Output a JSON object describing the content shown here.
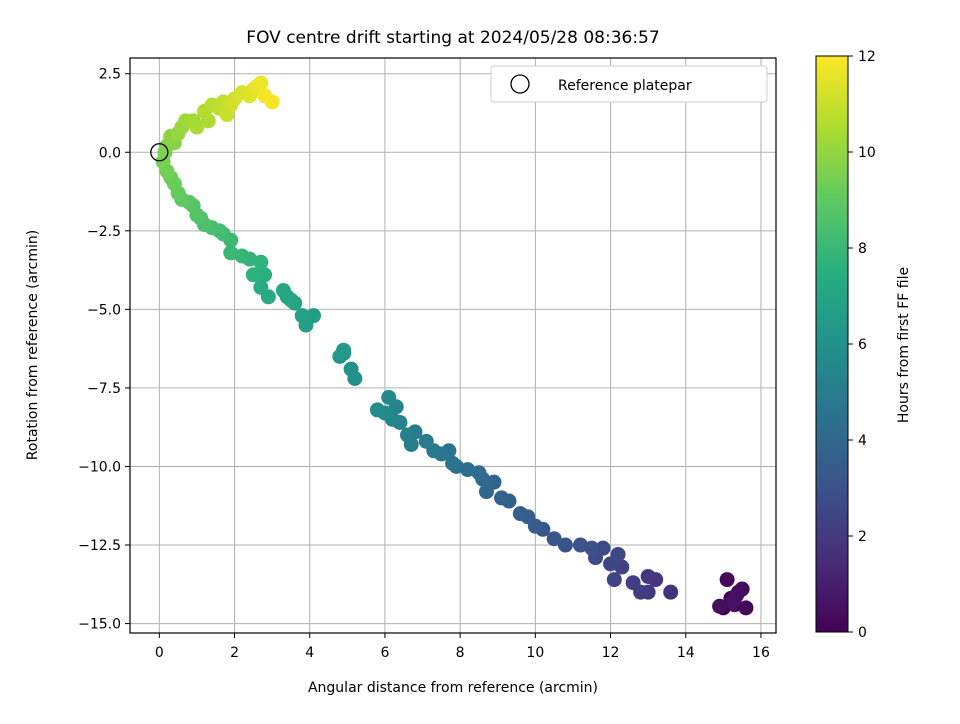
{
  "chart_data": {
    "type": "scatter",
    "title": "FOV centre drift starting at 2024/05/28 08:36:57",
    "xlabel": "Angular distance from reference (arcmin)",
    "ylabel": "Rotation from reference (arcmin)",
    "xlim": [
      -0.78,
      16.4
    ],
    "ylim": [
      -15.3,
      3.0
    ],
    "x_ticks": [
      0,
      2,
      4,
      6,
      8,
      10,
      12,
      14,
      16
    ],
    "y_ticks": [
      2.5,
      0.0,
      -2.5,
      -5.0,
      -7.5,
      -10.0,
      -12.5,
      -15.0
    ],
    "grid": true,
    "legend": {
      "position": "top-right",
      "entries": [
        "Reference platepar"
      ]
    },
    "colorbar": {
      "label": "Hours from first FF file",
      "min": 0,
      "max": 12,
      "ticks": [
        0,
        2,
        4,
        6,
        8,
        10,
        12
      ],
      "colormap": "viridis"
    },
    "reference_point": {
      "x": 0,
      "y": 0
    },
    "colors": {
      "reference_marker": "#000000",
      "grid": "#b0b0b0"
    },
    "points": [
      [
        15.0,
        -14.5,
        0.02
      ],
      [
        15.2,
        -14.2,
        0.08
      ],
      [
        15.4,
        -14.0,
        0.14
      ],
      [
        15.6,
        -14.5,
        0.2
      ],
      [
        15.1,
        -13.6,
        0.26
      ],
      [
        15.3,
        -14.4,
        0.32
      ],
      [
        15.5,
        -13.9,
        0.38
      ],
      [
        14.9,
        -14.45,
        0.44
      ],
      [
        15.35,
        -14.1,
        0.5
      ],
      [
        15.25,
        -14.3,
        0.56
      ],
      [
        13.6,
        -14.0,
        1.7
      ],
      [
        13.2,
        -13.6,
        1.8
      ],
      [
        13.0,
        -13.5,
        1.9
      ],
      [
        13.0,
        -14.0,
        2.0
      ],
      [
        12.8,
        -14.0,
        2.1
      ],
      [
        12.6,
        -13.7,
        2.2
      ],
      [
        12.3,
        -13.2,
        2.3
      ],
      [
        12.1,
        -13.6,
        2.4
      ],
      [
        12.0,
        -13.1,
        2.5
      ],
      [
        12.2,
        -12.8,
        2.6
      ],
      [
        11.8,
        -12.6,
        2.7
      ],
      [
        11.6,
        -12.9,
        2.8
      ],
      [
        11.5,
        -12.6,
        2.9
      ],
      [
        11.2,
        -12.5,
        3.0
      ],
      [
        10.8,
        -12.5,
        3.1
      ],
      [
        10.5,
        -12.3,
        3.2
      ],
      [
        10.2,
        -12.0,
        3.3
      ],
      [
        10.0,
        -11.9,
        3.4
      ],
      [
        9.8,
        -11.6,
        3.5
      ],
      [
        9.6,
        -11.5,
        3.6
      ],
      [
        9.3,
        -11.1,
        3.7
      ],
      [
        9.1,
        -11.0,
        3.8
      ],
      [
        8.9,
        -10.5,
        3.9
      ],
      [
        8.7,
        -10.8,
        4.0
      ],
      [
        8.6,
        -10.4,
        4.1
      ],
      [
        8.5,
        -10.2,
        4.2
      ],
      [
        8.2,
        -10.1,
        4.3
      ],
      [
        7.9,
        -10.0,
        4.4
      ],
      [
        7.7,
        -9.5,
        4.5
      ],
      [
        7.8,
        -9.9,
        4.6
      ],
      [
        7.5,
        -9.6,
        4.7
      ],
      [
        7.3,
        -9.5,
        4.8
      ],
      [
        7.1,
        -9.2,
        4.9
      ],
      [
        6.8,
        -8.9,
        5.0
      ],
      [
        6.7,
        -9.3,
        5.1
      ],
      [
        6.6,
        -9.0,
        5.2
      ],
      [
        6.4,
        -8.6,
        5.3
      ],
      [
        6.3,
        -8.1,
        5.4
      ],
      [
        6.2,
        -8.5,
        5.5
      ],
      [
        6.1,
        -7.8,
        5.6
      ],
      [
        6.0,
        -8.3,
        5.7
      ],
      [
        5.8,
        -8.2,
        5.8
      ],
      [
        5.2,
        -7.2,
        6.0
      ],
      [
        5.1,
        -6.9,
        6.1
      ],
      [
        4.9,
        -6.4,
        6.2
      ],
      [
        4.8,
        -6.5,
        6.3
      ],
      [
        4.9,
        -6.3,
        6.4
      ],
      [
        4.1,
        -5.2,
        6.6
      ],
      [
        3.9,
        -5.5,
        6.7
      ],
      [
        3.8,
        -5.2,
        6.8
      ],
      [
        3.6,
        -4.8,
        6.9
      ],
      [
        3.5,
        -4.7,
        7.0
      ],
      [
        3.4,
        -4.6,
        7.1
      ],
      [
        3.3,
        -4.4,
        7.2
      ],
      [
        2.9,
        -4.6,
        7.3
      ],
      [
        2.7,
        -4.3,
        7.4
      ],
      [
        2.8,
        -3.9,
        7.5
      ],
      [
        2.5,
        -3.9,
        7.6
      ],
      [
        2.7,
        -3.5,
        7.7
      ],
      [
        2.4,
        -3.4,
        7.8
      ],
      [
        2.2,
        -3.3,
        7.9
      ],
      [
        1.9,
        -3.2,
        8.0
      ],
      [
        1.9,
        -2.8,
        8.1
      ],
      [
        1.7,
        -2.6,
        8.2
      ],
      [
        1.6,
        -2.5,
        8.3
      ],
      [
        1.4,
        -2.4,
        8.4
      ],
      [
        1.2,
        -2.3,
        8.5
      ],
      [
        1.1,
        -2.1,
        8.6
      ],
      [
        1.0,
        -2.0,
        8.7
      ],
      [
        0.9,
        -1.7,
        8.8
      ],
      [
        0.8,
        -1.6,
        8.9
      ],
      [
        0.6,
        -1.5,
        9.0
      ],
      [
        0.5,
        -1.3,
        9.1
      ],
      [
        0.4,
        -1.0,
        9.2
      ],
      [
        0.3,
        -0.8,
        9.3
      ],
      [
        0.2,
        -0.6,
        9.4
      ],
      [
        0.1,
        -0.3,
        9.5
      ],
      [
        0.15,
        0.0,
        9.6
      ],
      [
        0.2,
        0.2,
        9.7
      ],
      [
        0.4,
        0.3,
        9.8
      ],
      [
        0.3,
        0.5,
        9.9
      ],
      [
        0.5,
        0.6,
        10.0
      ],
      [
        0.6,
        0.8,
        10.1
      ],
      [
        0.7,
        1.0,
        10.2
      ],
      [
        0.9,
        1.0,
        10.3
      ],
      [
        1.0,
        0.8,
        10.4
      ],
      [
        1.3,
        1.0,
        10.5
      ],
      [
        1.2,
        1.3,
        10.6
      ],
      [
        1.4,
        1.5,
        10.7
      ],
      [
        1.6,
        1.4,
        10.8
      ],
      [
        1.7,
        1.6,
        10.9
      ],
      [
        1.8,
        1.2,
        11.0
      ],
      [
        1.9,
        1.5,
        11.1
      ],
      [
        2.0,
        1.7,
        11.2
      ],
      [
        2.2,
        1.9,
        11.3
      ],
      [
        2.4,
        1.8,
        11.4
      ],
      [
        2.5,
        2.0,
        11.5
      ],
      [
        2.6,
        2.1,
        11.6
      ],
      [
        2.7,
        2.2,
        11.7
      ],
      [
        2.8,
        1.8,
        11.8
      ],
      [
        3.0,
        1.6,
        11.9
      ]
    ]
  }
}
